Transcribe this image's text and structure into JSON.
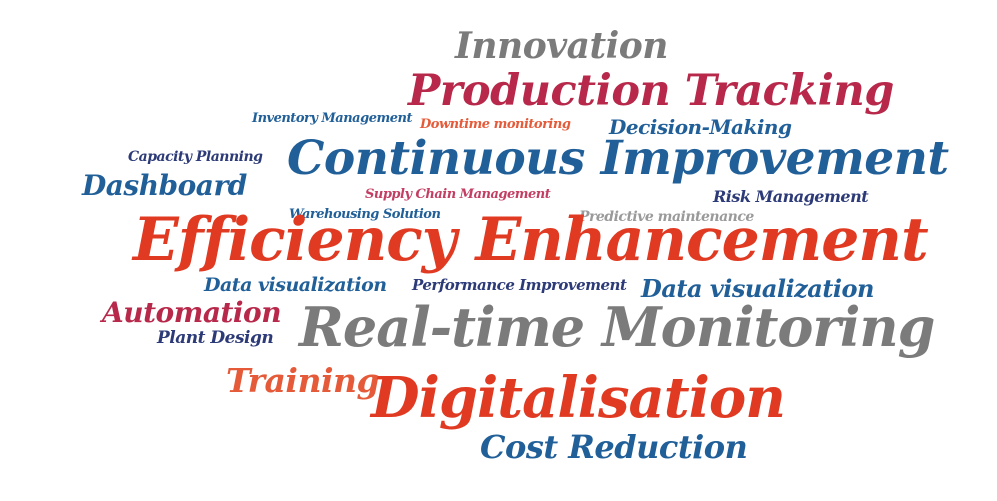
{
  "word_cloud": {
    "words": [
      {
        "id": "innovation",
        "text": "Innovation",
        "color": "#7b7b7b"
      },
      {
        "id": "production",
        "text": "Production Tracking",
        "color": "#b7284a"
      },
      {
        "id": "inventory",
        "text": "Inventory Management",
        "color": "#215f98"
      },
      {
        "id": "downtime",
        "text": "Downtime monitoring",
        "color": "#e55b3a"
      },
      {
        "id": "decision",
        "text": "Decision-Making",
        "color": "#215f98"
      },
      {
        "id": "capacity",
        "text": "Capacity Planning",
        "color": "#2c3a77"
      },
      {
        "id": "continuous",
        "text": "Continuous Improvement",
        "color": "#215f98"
      },
      {
        "id": "dashboard",
        "text": "Dashboard",
        "color": "#215f98"
      },
      {
        "id": "supply",
        "text": "Supply Chain Management",
        "color": "#c33e63"
      },
      {
        "id": "risk",
        "text": "Risk Management",
        "color": "#2c3a77"
      },
      {
        "id": "warehousing",
        "text": "Warehousing Solution",
        "color": "#215f98"
      },
      {
        "id": "predictive",
        "text": "Predictive maintenance",
        "color": "#9a9a9a"
      },
      {
        "id": "efficiency",
        "text": "Efficiency Enhancement",
        "color": "#e03a22"
      },
      {
        "id": "dataviz1",
        "text": "Data visualization",
        "color": "#215f98"
      },
      {
        "id": "performance",
        "text": "Performance Improvement",
        "color": "#2c3a77"
      },
      {
        "id": "dataviz2",
        "text": "Data visualization",
        "color": "#215f98"
      },
      {
        "id": "automation",
        "text": "Automation",
        "color": "#b7284a"
      },
      {
        "id": "plant",
        "text": "Plant Design",
        "color": "#2c3a77"
      },
      {
        "id": "realtime",
        "text": "Real-time Monitoring",
        "color": "#7b7b7b"
      },
      {
        "id": "training",
        "text": "Training",
        "color": "#e55b3a"
      },
      {
        "id": "digital",
        "text": "Digitalisation",
        "color": "#e03a22"
      },
      {
        "id": "cost",
        "text": "Cost Reduction",
        "color": "#215f98"
      }
    ]
  }
}
